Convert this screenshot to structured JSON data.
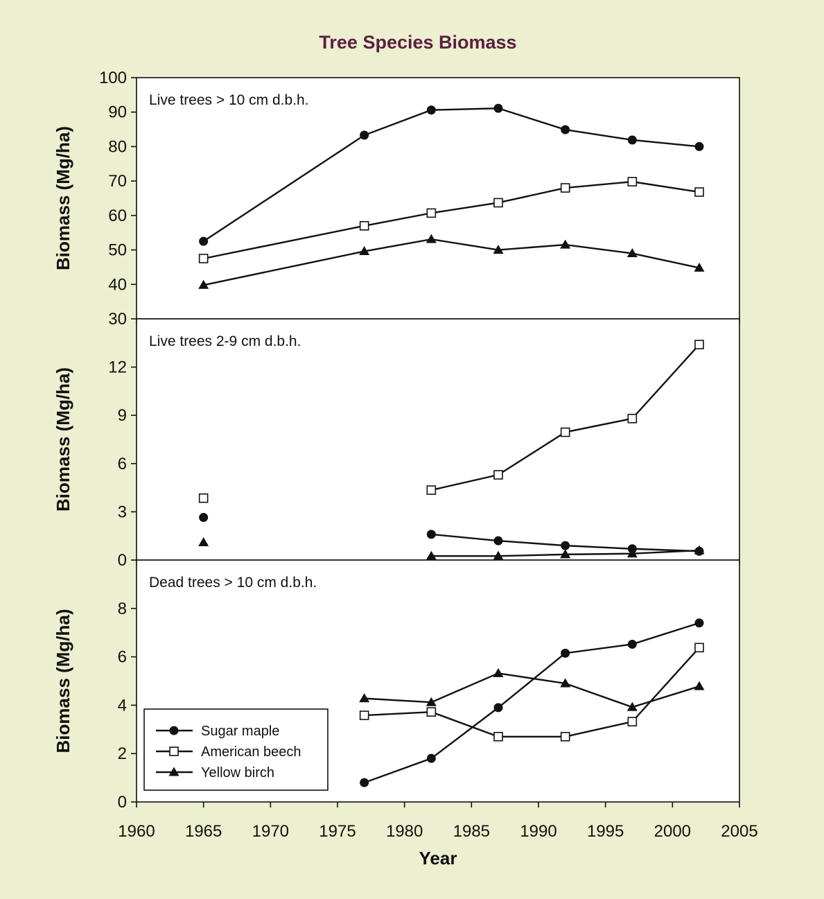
{
  "figure": {
    "title": "Tree Species Biomass",
    "title_color": "#5b2141",
    "background_color": "#ecefd0",
    "plot_background": "#ffffff",
    "line_color": "#111111"
  },
  "chart_data": [
    {
      "type": "line",
      "panel_label": "Live trees > 10 cm d.b.h.",
      "ylabel": "Biomass (Mg/ha)",
      "xlabel": "",
      "xlim": [
        1960,
        2005
      ],
      "ylim": [
        30,
        100
      ],
      "yticks": [
        "30",
        "40",
        "50",
        "60",
        "70",
        "80",
        "90",
        "100"
      ],
      "grid": false,
      "series": [
        {
          "name": "Sugar maple",
          "marker": "circle",
          "points": [
            [
              1965,
              52.5
            ],
            [
              1977,
              83.3
            ],
            [
              1982,
              90.6
            ],
            [
              1987,
              91.1
            ],
            [
              1992,
              84.9
            ],
            [
              1997,
              81.9
            ],
            [
              2002,
              80.0
            ]
          ],
          "segments": [
            [
              0,
              6
            ]
          ]
        },
        {
          "name": "American beech",
          "marker": "square",
          "points": [
            [
              1965,
              47.5
            ],
            [
              1977,
              57.0
            ],
            [
              1982,
              60.7
            ],
            [
              1987,
              63.7
            ],
            [
              1992,
              68.0
            ],
            [
              1997,
              69.8
            ],
            [
              2002,
              66.8
            ]
          ],
          "segments": [
            [
              0,
              6
            ]
          ]
        },
        {
          "name": "Yellow birch",
          "marker": "triangle",
          "points": [
            [
              1965,
              39.8
            ],
            [
              1977,
              49.6
            ],
            [
              1982,
              53.1
            ],
            [
              1987,
              50.0
            ],
            [
              1992,
              51.5
            ],
            [
              1997,
              49.0
            ],
            [
              2002,
              44.8
            ]
          ],
          "segments": [
            [
              0,
              6
            ]
          ]
        }
      ]
    },
    {
      "type": "line",
      "panel_label": "Live trees 2-9 cm d.b.h.",
      "ylabel": "Biomass (Mg/ha)",
      "xlabel": "",
      "xlim": [
        1960,
        2005
      ],
      "ylim": [
        0,
        15
      ],
      "yticks": [
        "0",
        "3",
        "6",
        "9",
        "12"
      ],
      "grid": false,
      "series": [
        {
          "name": "Sugar maple",
          "marker": "circle",
          "points": [
            [
              1965,
              2.65
            ],
            [
              1982,
              1.6
            ],
            [
              1987,
              1.2
            ],
            [
              1992,
              0.9
            ],
            [
              1997,
              0.7
            ],
            [
              2002,
              0.55
            ]
          ],
          "segments": [
            [
              1,
              5
            ]
          ]
        },
        {
          "name": "American beech",
          "marker": "square",
          "points": [
            [
              1965,
              3.85
            ],
            [
              1982,
              4.35
            ],
            [
              1987,
              5.3
            ],
            [
              1992,
              7.95
            ],
            [
              1997,
              8.8
            ],
            [
              2002,
              13.4
            ]
          ],
          "segments": [
            [
              1,
              5
            ]
          ]
        },
        {
          "name": "Yellow birch",
          "marker": "triangle",
          "points": [
            [
              1965,
              1.1
            ],
            [
              1982,
              0.25
            ],
            [
              1987,
              0.25
            ],
            [
              1992,
              0.35
            ],
            [
              1997,
              0.4
            ],
            [
              2002,
              0.6
            ]
          ],
          "segments": [
            [
              1,
              5
            ]
          ]
        }
      ]
    },
    {
      "type": "line",
      "panel_label": "Dead trees  > 10 cm d.b.h.",
      "ylabel": "Biomass (Mg/ha)",
      "xlabel": "Year",
      "xlim": [
        1960,
        2005
      ],
      "ylim": [
        0,
        10
      ],
      "yticks": [
        "0",
        "2",
        "4",
        "6",
        "8"
      ],
      "xticks": [
        "1960",
        "1965",
        "1970",
        "1975",
        "1980",
        "1985",
        "1990",
        "1995",
        "2000",
        "2005"
      ],
      "grid": false,
      "legend": {
        "position": "bottom-left",
        "entries": [
          "Sugar maple",
          "American beech",
          "Yellow birch"
        ]
      },
      "series": [
        {
          "name": "Sugar maple",
          "marker": "circle",
          "points": [
            [
              1977,
              0.8
            ],
            [
              1982,
              1.8
            ],
            [
              1987,
              3.9
            ],
            [
              1992,
              6.15
            ],
            [
              1997,
              6.52
            ],
            [
              2002,
              7.4
            ]
          ],
          "segments": [
            [
              0,
              5
            ]
          ]
        },
        {
          "name": "American beech",
          "marker": "square",
          "points": [
            [
              1977,
              3.58
            ],
            [
              1982,
              3.72
            ],
            [
              1987,
              2.7
            ],
            [
              1992,
              2.7
            ],
            [
              1997,
              3.32
            ],
            [
              2002,
              6.38
            ]
          ],
          "segments": [
            [
              0,
              5
            ]
          ]
        },
        {
          "name": "Yellow birch",
          "marker": "triangle",
          "points": [
            [
              1977,
              4.28
            ],
            [
              1982,
              4.12
            ],
            [
              1987,
              5.32
            ],
            [
              1992,
              4.9
            ],
            [
              1997,
              3.92
            ],
            [
              2002,
              4.78
            ]
          ],
          "segments": [
            [
              0,
              5
            ]
          ]
        }
      ]
    }
  ]
}
